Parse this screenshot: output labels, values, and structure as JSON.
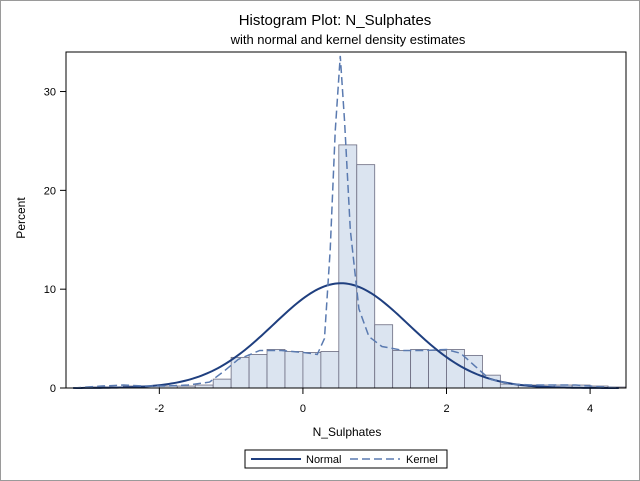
{
  "chart_data": {
    "type": "bar",
    "title": "Histogram Plot: N_Sulphates",
    "subtitle": "with normal and kernel density estimates",
    "xlabel": "N_Sulphates",
    "ylabel": "Percent",
    "xlim": [
      -3.3,
      4.5
    ],
    "ylim": [
      0,
      34
    ],
    "xticks": [
      "-2",
      "0",
      "2",
      "4"
    ],
    "yticks": [
      "0",
      "10",
      "20",
      "30"
    ],
    "bin_width": 0.25,
    "bins": [
      {
        "x": -3.0,
        "value": 0.1
      },
      {
        "x": -2.75,
        "value": 0.1
      },
      {
        "x": -2.5,
        "value": 0.2
      },
      {
        "x": -2.25,
        "value": 0.2
      },
      {
        "x": -2.0,
        "value": 0.2
      },
      {
        "x": -1.75,
        "value": 0.2
      },
      {
        "x": -1.5,
        "value": 0.3
      },
      {
        "x": -1.25,
        "value": 0.9
      },
      {
        "x": -1.0,
        "value": 3.1
      },
      {
        "x": -0.75,
        "value": 3.4
      },
      {
        "x": -0.5,
        "value": 3.9
      },
      {
        "x": -0.25,
        "value": 3.7
      },
      {
        "x": 0.0,
        "value": 3.6
      },
      {
        "x": 0.25,
        "value": 3.7
      },
      {
        "x": 0.5,
        "value": 24.6
      },
      {
        "x": 0.75,
        "value": 22.6
      },
      {
        "x": 1.0,
        "value": 6.4
      },
      {
        "x": 1.25,
        "value": 3.8
      },
      {
        "x": 1.5,
        "value": 3.9
      },
      {
        "x": 1.75,
        "value": 3.8
      },
      {
        "x": 2.0,
        "value": 3.9
      },
      {
        "x": 2.25,
        "value": 3.3
      },
      {
        "x": 2.5,
        "value": 1.3
      },
      {
        "x": 2.75,
        "value": 0.4
      },
      {
        "x": 3.0,
        "value": 0.3
      },
      {
        "x": 3.25,
        "value": 0.3
      },
      {
        "x": 3.5,
        "value": 0.3
      },
      {
        "x": 3.75,
        "value": 0.3
      },
      {
        "x": 4.0,
        "value": 0.2
      },
      {
        "x": 4.25,
        "value": 0.1
      }
    ],
    "series": [
      {
        "name": "Normal",
        "style": "solid",
        "color": "#1f3f7f",
        "mean": 0.53,
        "sd": 0.94,
        "peak": 10.6
      },
      {
        "name": "Kernel",
        "style": "dashed",
        "color": "#5a7ab0",
        "points": [
          [
            -3.2,
            0.0
          ],
          [
            -2.8,
            0.2
          ],
          [
            -2.5,
            0.3
          ],
          [
            -2.2,
            0.2
          ],
          [
            -1.9,
            0.2
          ],
          [
            -1.6,
            0.3
          ],
          [
            -1.3,
            0.6
          ],
          [
            -1.1,
            1.7
          ],
          [
            -0.9,
            2.9
          ],
          [
            -0.6,
            3.8
          ],
          [
            -0.3,
            3.8
          ],
          [
            0.0,
            3.6
          ],
          [
            0.2,
            3.4
          ],
          [
            0.3,
            5.0
          ],
          [
            0.38,
            14.0
          ],
          [
            0.45,
            26.0
          ],
          [
            0.52,
            33.6
          ],
          [
            0.58,
            27.0
          ],
          [
            0.66,
            16.0
          ],
          [
            0.78,
            8.0
          ],
          [
            0.92,
            5.2
          ],
          [
            1.1,
            4.2
          ],
          [
            1.4,
            3.8
          ],
          [
            1.7,
            3.8
          ],
          [
            2.0,
            3.9
          ],
          [
            2.2,
            3.5
          ],
          [
            2.4,
            2.2
          ],
          [
            2.6,
            0.9
          ],
          [
            2.9,
            0.4
          ],
          [
            3.2,
            0.3
          ],
          [
            3.5,
            0.3
          ],
          [
            3.8,
            0.3
          ],
          [
            4.0,
            0.2
          ],
          [
            4.2,
            0.1
          ],
          [
            4.4,
            0.0
          ]
        ]
      }
    ],
    "bar_fill": "#dbe4f0",
    "bar_stroke": "#6b6b80",
    "legend_position": "bottom-center",
    "grid": false
  }
}
